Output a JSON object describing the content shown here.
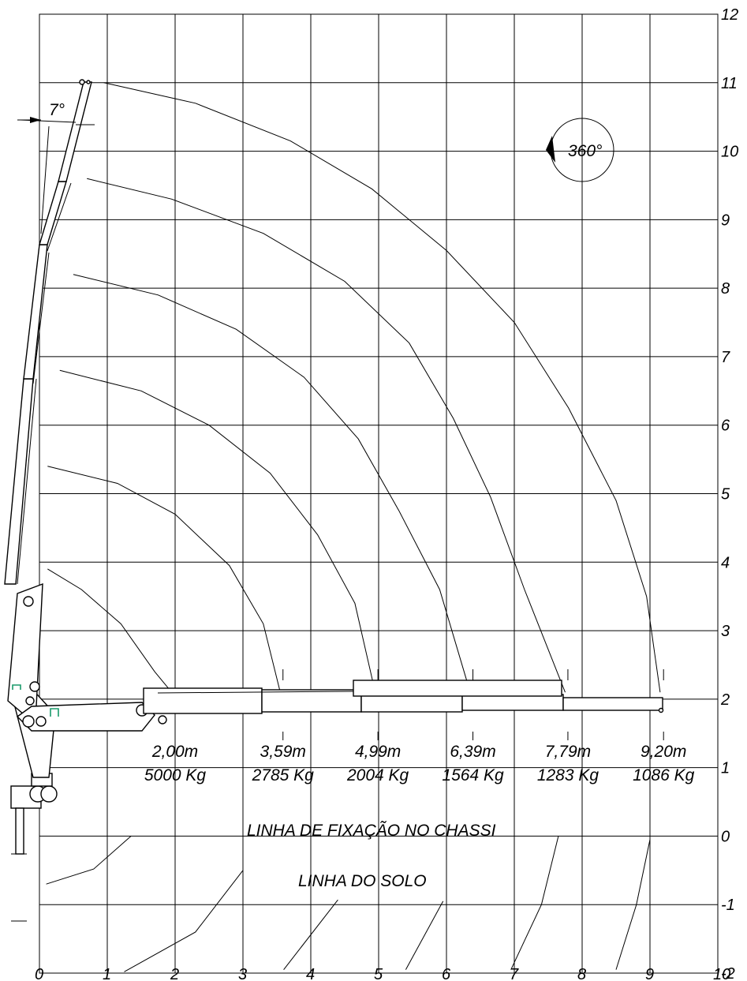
{
  "chart_data": {
    "type": "diagram",
    "xlim": [
      0,
      10
    ],
    "ylim": [
      -2,
      12
    ],
    "x_ticks": [
      "0",
      "1",
      "2",
      "3",
      "4",
      "5",
      "6",
      "7",
      "8",
      "9",
      "10"
    ],
    "y_ticks": [
      "-2",
      "-1",
      "0",
      "1",
      "2",
      "3",
      "4",
      "5",
      "6",
      "7",
      "8",
      "9",
      "10",
      "11",
      "12"
    ],
    "boom_angle_label": "7°",
    "rotation_label": "360°",
    "chassis_line_label": "LINHA DE FIXAÇÃO NO CHASSI",
    "ground_line_label": "LINHA DO SOLO",
    "load_points": [
      {
        "reach": "2,00m",
        "load": "5000 Kg",
        "x": 2.0
      },
      {
        "reach": "3,59m",
        "load": "2785 Kg",
        "x": 3.59
      },
      {
        "reach": "4,99m",
        "load": "2004 Kg",
        "x": 4.99
      },
      {
        "reach": "6,39m",
        "load": "1564 Kg",
        "x": 6.39
      },
      {
        "reach": "7,79m",
        "load": "1283 Kg",
        "x": 7.79
      },
      {
        "reach": "9,20m",
        "load": "1086 Kg",
        "x": 9.2
      }
    ],
    "reach_curves": [
      [
        [
          0.12,
          3.9
        ],
        [
          0.62,
          3.6
        ],
        [
          1.2,
          3.1
        ],
        [
          1.7,
          2.4
        ],
        [
          1.95,
          2.1
        ]
      ],
      [
        [
          0.12,
          5.4
        ],
        [
          1.15,
          5.15
        ],
        [
          2.0,
          4.7
        ],
        [
          2.8,
          3.95
        ],
        [
          3.3,
          3.1
        ],
        [
          3.55,
          2.1
        ]
      ],
      [
        [
          0.3,
          6.8
        ],
        [
          1.5,
          6.5
        ],
        [
          2.5,
          6.0
        ],
        [
          3.4,
          5.3
        ],
        [
          4.1,
          4.4
        ],
        [
          4.65,
          3.4
        ],
        [
          4.95,
          2.1
        ]
      ],
      [
        [
          0.5,
          8.2
        ],
        [
          1.75,
          7.9
        ],
        [
          2.9,
          7.4
        ],
        [
          3.9,
          6.7
        ],
        [
          4.7,
          5.8
        ],
        [
          5.3,
          4.75
        ],
        [
          5.9,
          3.6
        ],
        [
          6.35,
          2.1
        ]
      ],
      [
        [
          0.7,
          9.6
        ],
        [
          1.95,
          9.3
        ],
        [
          3.3,
          8.8
        ],
        [
          4.5,
          8.1
        ],
        [
          5.45,
          7.2
        ],
        [
          6.1,
          6.1
        ],
        [
          6.65,
          4.95
        ],
        [
          7.15,
          3.6
        ],
        [
          7.75,
          2.1
        ]
      ],
      [
        [
          0.95,
          11.0
        ],
        [
          2.3,
          10.7
        ],
        [
          3.7,
          10.15
        ],
        [
          4.9,
          9.45
        ],
        [
          6.0,
          8.55
        ],
        [
          7.0,
          7.5
        ],
        [
          7.8,
          6.25
        ],
        [
          8.5,
          4.9
        ],
        [
          8.95,
          3.5
        ],
        [
          9.15,
          2.1
        ]
      ]
    ],
    "ground_curves": [
      [
        [
          0.1,
          -0.7
        ],
        [
          0.8,
          -0.48
        ],
        [
          1.35,
          0.0
        ]
      ],
      [
        [
          1.25,
          -1.98
        ],
        [
          2.3,
          -1.4
        ],
        [
          3.0,
          -0.5
        ]
      ],
      [
        [
          3.6,
          -1.95
        ],
        [
          4.4,
          -0.93
        ]
      ],
      [
        [
          5.4,
          -1.95
        ],
        [
          5.95,
          -0.95
        ]
      ],
      [
        [
          6.95,
          -1.95
        ],
        [
          7.4,
          -1.0
        ],
        [
          7.65,
          0.0
        ]
      ],
      [
        [
          8.5,
          -1.95
        ],
        [
          8.8,
          -1.0
        ],
        [
          9.0,
          -0.05
        ]
      ]
    ]
  }
}
